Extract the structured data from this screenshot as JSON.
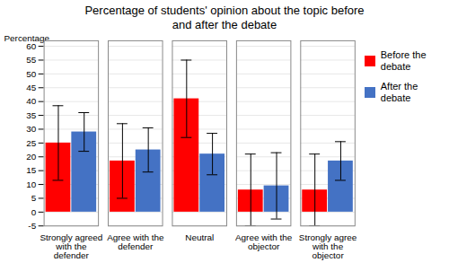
{
  "chart_data": {
    "type": "bar",
    "title": "Percentage of students' opinion about the topic before\nand after the debate",
    "ylabel": "Percentage",
    "categories": [
      "Strongly agreed\nwith the\ndefender",
      "Agree with the\ndefender",
      "Neutral",
      "Agree with the\nobjector",
      "Strongly agree\nwith the\nobjector"
    ],
    "series": [
      {
        "name": "Before the\ndebate",
        "color": "#FF0000",
        "values": [
          25,
          18.5,
          41,
          8,
          8
        ],
        "errors": [
          13.5,
          13.5,
          14,
          13,
          13
        ]
      },
      {
        "name": "After the\ndebate",
        "color": "#4472C4",
        "values": [
          29,
          22.5,
          21,
          9.5,
          18.5
        ],
        "errors": [
          7,
          8,
          7.5,
          12,
          7
        ]
      }
    ],
    "ylim": [
      -5,
      62
    ],
    "yticks": [
      -5,
      0,
      5,
      10,
      15,
      20,
      25,
      30,
      35,
      40,
      45,
      50,
      55,
      60
    ],
    "grid": true,
    "legend": "right"
  }
}
